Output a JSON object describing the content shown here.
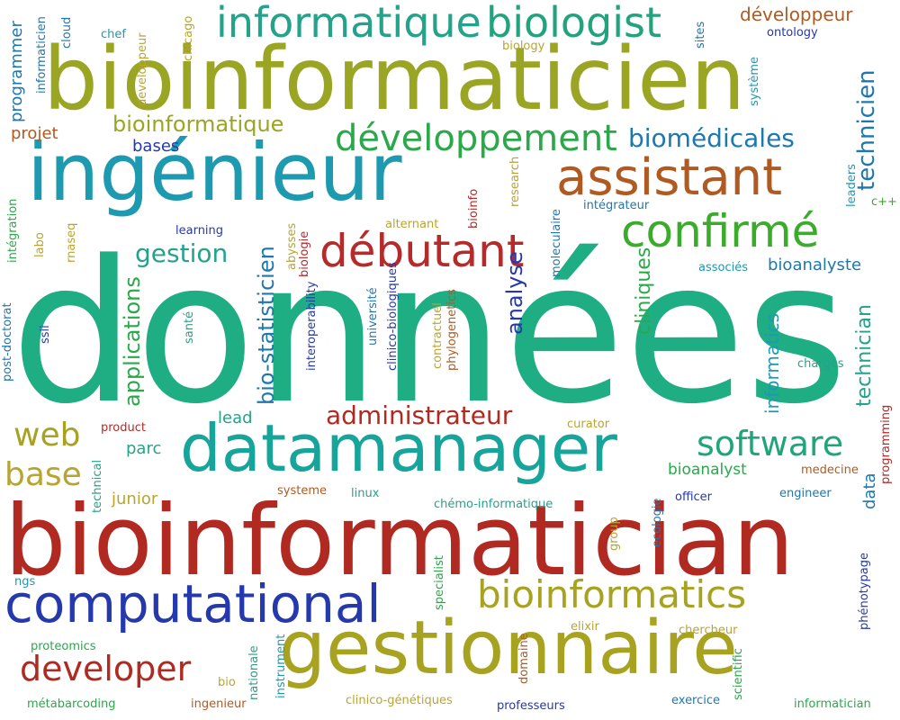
{
  "words": [
    {
      "text": "données",
      "color": "#1fae84"
    },
    {
      "text": "bioinformatician",
      "color": "#b02a22"
    },
    {
      "text": "bioinformaticien",
      "color": "#9aa524"
    },
    {
      "text": "ingénieur",
      "color": "#1d9ab0"
    },
    {
      "text": "datamanager",
      "color": "#17a49a"
    },
    {
      "text": "gestionnaire",
      "color": "#a8a221"
    },
    {
      "text": "computational",
      "color": "#2539ad"
    },
    {
      "text": "informatique",
      "color": "#25a28a"
    },
    {
      "text": "biologist",
      "color": "#22a37e"
    },
    {
      "text": "assistant",
      "color": "#b05a22"
    },
    {
      "text": "débutant",
      "color": "#b52a2a"
    },
    {
      "text": "confirmé",
      "color": "#3aab2a"
    },
    {
      "text": "bioinformatics",
      "color": "#a8a221"
    },
    {
      "text": "développement",
      "color": "#2aa84a"
    },
    {
      "text": "developer",
      "color": "#b02a22"
    },
    {
      "text": "software",
      "color": "#1fa57a"
    },
    {
      "text": "administrateur",
      "color": "#b02a22"
    },
    {
      "text": "web",
      "color": "#a8a221"
    },
    {
      "text": "base",
      "color": "#b8a531"
    },
    {
      "text": "biomédicales",
      "color": "#1d78ae"
    },
    {
      "text": "bioinformatique",
      "color": "#9aa524"
    },
    {
      "text": "technicien",
      "color": "#1d78ae"
    },
    {
      "text": "gestion",
      "color": "#25a28a"
    },
    {
      "text": "applications",
      "color": "#2aa84a"
    },
    {
      "text": "bio-statisticien",
      "color": "#1d78ae"
    },
    {
      "text": "technician",
      "color": "#25a28a"
    },
    {
      "text": "analyse",
      "color": "#2539ad"
    },
    {
      "text": "cliniques",
      "color": "#2aa84a"
    },
    {
      "text": "informatics",
      "color": "#1d9ab0"
    },
    {
      "text": "développeur",
      "color": "#b05a22"
    },
    {
      "text": "bioanalyste",
      "color": "#1d78ae"
    },
    {
      "text": "programmer",
      "color": "#1d78ae"
    },
    {
      "text": "projet",
      "color": "#b05a22"
    },
    {
      "text": "bases",
      "color": "#2539ad"
    },
    {
      "text": "data",
      "color": "#1d78ae"
    },
    {
      "text": "junior",
      "color": "#b8a531"
    },
    {
      "text": "bioanalyst",
      "color": "#2aa84a"
    },
    {
      "text": "parc",
      "color": "#25a28a"
    },
    {
      "text": "lead",
      "color": "#25a28a"
    },
    {
      "text": "ontology",
      "color": "#2539ad"
    },
    {
      "text": "sites",
      "color": "#1d78ae"
    },
    {
      "text": "chef",
      "color": "#1d9ab0"
    },
    {
      "text": "cloud",
      "color": "#1d78ae"
    },
    {
      "text": "chicago",
      "color": "#b8a531"
    },
    {
      "text": "developpeur",
      "color": "#b8a531"
    },
    {
      "text": "biology",
      "color": "#b8a531"
    },
    {
      "text": "système",
      "color": "#1d9ab0"
    },
    {
      "text": "informaticien",
      "color": "#1d78ae"
    },
    {
      "text": "leaders",
      "color": "#1d9ab0"
    },
    {
      "text": "c++",
      "color": "#3aab2a"
    },
    {
      "text": "intégrateur",
      "color": "#1d78ae"
    },
    {
      "text": "moleculaire",
      "color": "#1d78ae"
    },
    {
      "text": "research",
      "color": "#b8a531"
    },
    {
      "text": "bioinfo",
      "color": "#b52a2a"
    },
    {
      "text": "alternant",
      "color": "#b8a531"
    },
    {
      "text": "associés",
      "color": "#1d9ab0"
    },
    {
      "text": "learning",
      "color": "#2539ad"
    },
    {
      "text": "intégration",
      "color": "#2aa84a"
    },
    {
      "text": "labo",
      "color": "#b8a531"
    },
    {
      "text": "rnaseq",
      "color": "#b8a531"
    },
    {
      "text": "abysses",
      "color": "#b8a531"
    },
    {
      "text": "biologie",
      "color": "#b52a2a"
    },
    {
      "text": "université",
      "color": "#1d78ae"
    },
    {
      "text": "clinico-biologiques",
      "color": "#2539ad"
    },
    {
      "text": "interoperability",
      "color": "#2539ad"
    },
    {
      "text": "contractuel",
      "color": "#b8a531"
    },
    {
      "text": "phylogenetics",
      "color": "#b05a22"
    },
    {
      "text": "ssii",
      "color": "#2539ad"
    },
    {
      "text": "santé",
      "color": "#25a28a"
    },
    {
      "text": "post-doctorat",
      "color": "#1d78ae"
    },
    {
      "text": "chargés",
      "color": "#25a28a"
    },
    {
      "text": "product",
      "color": "#b52a2a"
    },
    {
      "text": "curator",
      "color": "#b8a531"
    },
    {
      "text": "technical",
      "color": "#25a28a"
    },
    {
      "text": "systeme",
      "color": "#b05a22"
    },
    {
      "text": "linux",
      "color": "#25a28a"
    },
    {
      "text": "chémo-informatique",
      "color": "#25a28a"
    },
    {
      "text": "officer",
      "color": "#2539ad"
    },
    {
      "text": "engineer",
      "color": "#1d78ae"
    },
    {
      "text": "medecine",
      "color": "#b05a22"
    },
    {
      "text": "programming",
      "color": "#b52a2a"
    },
    {
      "text": "ecologie",
      "color": "#1d78ae"
    },
    {
      "text": "group",
      "color": "#b8a531"
    },
    {
      "text": "specialist",
      "color": "#2aa84a"
    },
    {
      "text": "phénotypage",
      "color": "#2539ad"
    },
    {
      "text": "ngs",
      "color": "#1d9ab0"
    },
    {
      "text": "elixir",
      "color": "#b8a531"
    },
    {
      "text": "chercheur",
      "color": "#b8a531"
    },
    {
      "text": "proteomics",
      "color": "#2aa84a"
    },
    {
      "text": "domaine",
      "color": "#b05a22"
    },
    {
      "text": "instrument",
      "color": "#1d9ab0"
    },
    {
      "text": "nationale",
      "color": "#25a28a"
    },
    {
      "text": "scientific",
      "color": "#2aa84a"
    },
    {
      "text": "bio",
      "color": "#b8a531"
    },
    {
      "text": "métabarcoding",
      "color": "#2aa84a"
    },
    {
      "text": "ingenieur",
      "color": "#b05a22"
    },
    {
      "text": "clinico-génétiques",
      "color": "#b8a531"
    },
    {
      "text": "professeurs",
      "color": "#2539ad"
    },
    {
      "text": "exercice",
      "color": "#1d78ae"
    },
    {
      "text": "informatician",
      "color": "#2aa84a"
    }
  ]
}
